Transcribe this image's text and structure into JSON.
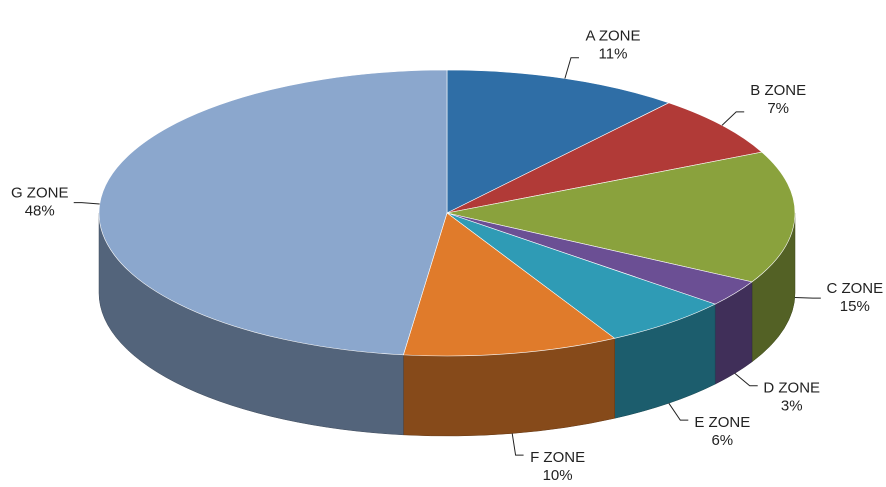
{
  "chart_data": {
    "type": "pie",
    "categories": [
      "A ZONE",
      "B ZONE",
      "C ZONE",
      "D ZONE",
      "E ZONE",
      "F ZONE",
      "G ZONE"
    ],
    "values": [
      11,
      7,
      15,
      3,
      6,
      10,
      48
    ],
    "value_labels": [
      "11%",
      "7%",
      "15%",
      "3%",
      "6%",
      "10%",
      "48%"
    ],
    "colors": [
      "#2f6ea6",
      "#b13a37",
      "#8aa23d",
      "#6b4f94",
      "#2f9bb5",
      "#e07b2b",
      "#8ba7cd"
    ]
  }
}
